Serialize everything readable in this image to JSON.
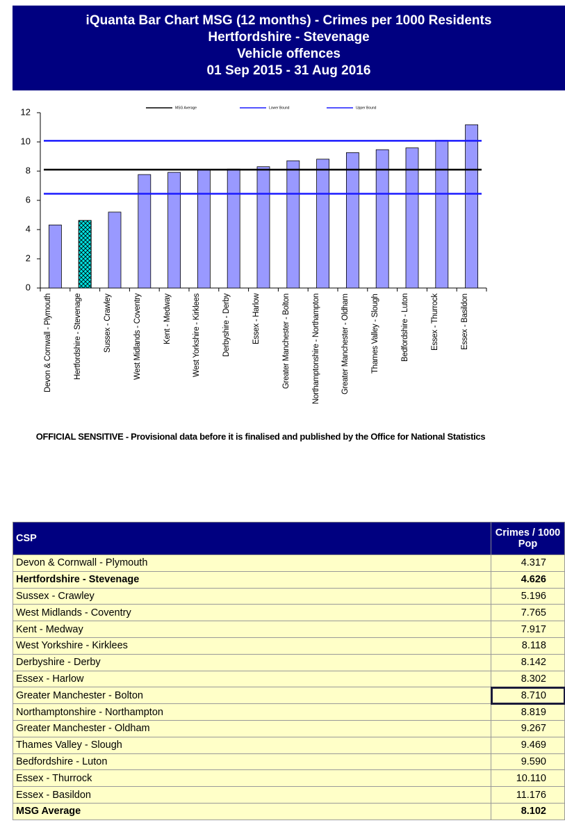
{
  "chart_data": {
    "type": "bar",
    "title": [
      "iQuanta Bar Chart MSG (12 months) - Crimes per 1000 Residents",
      "Hertfordshire - Stevenage",
      "Vehicle offences",
      "01 Sep 2015 - 31 Aug 2016"
    ],
    "categories": [
      "Devon & Cornwall - Plymouth",
      "Hertfordshire - Stevenage",
      "Sussex - Crawley",
      "West Midlands - Coventry",
      "Kent - Medway",
      "West Yorkshire - Kirklees",
      "Derbyshire - Derby",
      "Essex - Harlow",
      "Greater Manchester - Bolton",
      "Northamptonshire - Northampton",
      "Greater Manchester - Oldham",
      "Thames Valley - Slough",
      "Bedfordshire - Luton",
      "Essex - Thurrock",
      "Essex - Basildon"
    ],
    "values": [
      4.317,
      4.626,
      5.196,
      7.765,
      7.917,
      8.118,
      8.142,
      8.302,
      8.71,
      8.819,
      9.267,
      9.469,
      9.59,
      10.11,
      11.176
    ],
    "colors": [
      "#9999ff",
      "#00e5e5",
      "#9999ff",
      "#9999ff",
      "#9999ff",
      "#9999ff",
      "#9999ff",
      "#9999ff",
      "#9999ff",
      "#9999ff",
      "#9999ff",
      "#9999ff",
      "#9999ff",
      "#9999ff",
      "#9999ff"
    ],
    "lines": [
      {
        "name": "MSG Average",
        "color": "#000000",
        "value": 8.102
      },
      {
        "name": "Lower Bound",
        "color": "#1a1aff",
        "value": 6.45
      },
      {
        "name": "Upper Bound",
        "color": "#1a1aff",
        "value": 10.08
      }
    ],
    "ylim": [
      0,
      12
    ],
    "yticks": [
      0,
      2,
      4,
      6,
      8,
      10,
      12
    ],
    "grid": false
  },
  "footnote": "OFFICIAL SENSITIVE - Provisional data before it is finalised and published by the Office for National Statistics",
  "table": {
    "header": [
      "CSP",
      "Crimes / 1000 Pop"
    ],
    "rows": [
      [
        "Devon & Cornwall - Plymouth",
        "4.317"
      ],
      [
        "Hertfordshire - Stevenage",
        "4.626"
      ],
      [
        "Sussex - Crawley",
        "5.196"
      ],
      [
        "West Midlands - Coventry",
        "7.765"
      ],
      [
        "Kent - Medway",
        "7.917"
      ],
      [
        "West Yorkshire - Kirklees",
        "8.118"
      ],
      [
        "Derbyshire - Derby",
        "8.142"
      ],
      [
        "Essex - Harlow",
        "8.302"
      ],
      [
        "Greater Manchester - Bolton",
        "8.710"
      ],
      [
        "Northamptonshire - Northampton",
        "8.819"
      ],
      [
        "Greater Manchester - Oldham",
        "9.267"
      ],
      [
        "Thames Valley - Slough",
        "9.469"
      ],
      [
        "Bedfordshire - Luton",
        "9.590"
      ],
      [
        "Essex - Thurrock",
        "10.110"
      ],
      [
        "Essex - Basildon",
        "11.176"
      ],
      [
        "MSG Average",
        "8.102"
      ]
    ],
    "bold_rows": [
      1,
      15
    ],
    "selected_cell": [
      8,
      1
    ]
  }
}
